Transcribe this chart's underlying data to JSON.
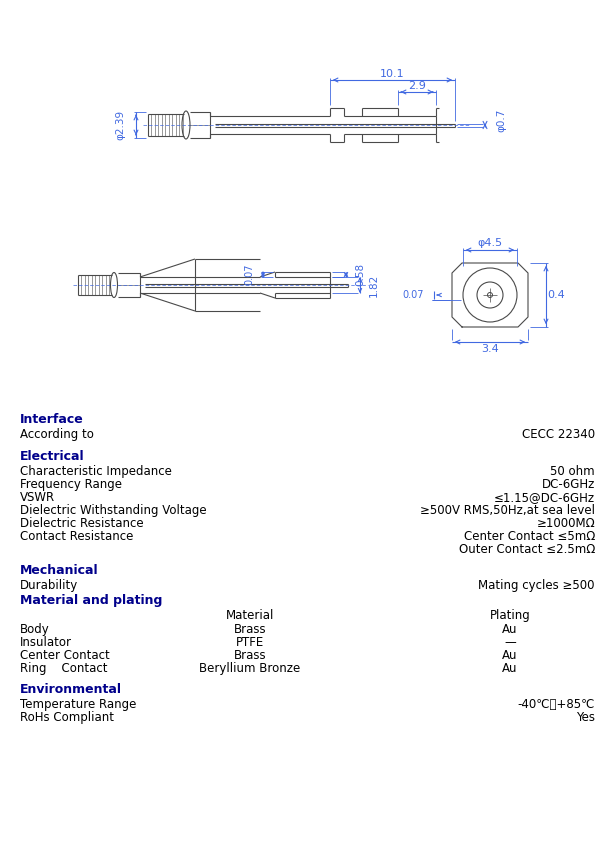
{
  "bg_color": "#ffffff",
  "line_color": "#4a4a4a",
  "blue_color": "#00008B",
  "dim_color": "#4169E1",
  "body_font": 8.5,
  "bold_font": 9,
  "sections": {
    "interface": {
      "header": "Interface",
      "rows": [
        [
          "According to",
          "CECC 22340"
        ]
      ]
    },
    "electrical": {
      "header": "Electrical",
      "rows": [
        [
          "Characteristic Impedance",
          "50 ohm"
        ],
        [
          "Frequency Range",
          "DC-6GHz"
        ],
        [
          "VSWR",
          "≤1.15@DC-6GHz"
        ],
        [
          "Dielectric Withstanding Voltage",
          "≥500V RMS,50Hz,at sea level"
        ],
        [
          "Dielectric Resistance",
          "≥1000MΩ"
        ],
        [
          "Contact Resistance",
          ""
        ]
      ],
      "contact_resistance_extra": [
        "Center Contact ≤5mΩ",
        "Outer Contact ≤2.5mΩ"
      ]
    },
    "mechanical": {
      "header": "Mechanical",
      "durability": [
        "Durability",
        "Mating cycles ≥500"
      ],
      "material_header": "Material and plating",
      "col_headers": [
        "Material",
        "Plating"
      ],
      "rows": [
        [
          "Body",
          "Brass",
          "Au"
        ],
        [
          "Insulator",
          "PTFE",
          "—"
        ],
        [
          "Center Contact",
          "Brass",
          "Au"
        ],
        [
          "Ring    Contact",
          "Beryllium Bronze",
          "Au"
        ]
      ]
    },
    "environmental": {
      "header": "Environmental",
      "rows": [
        [
          "Temperature Range",
          "-40℃～+85℃"
        ],
        [
          "RoHs Compliant",
          "Yes"
        ]
      ]
    }
  }
}
